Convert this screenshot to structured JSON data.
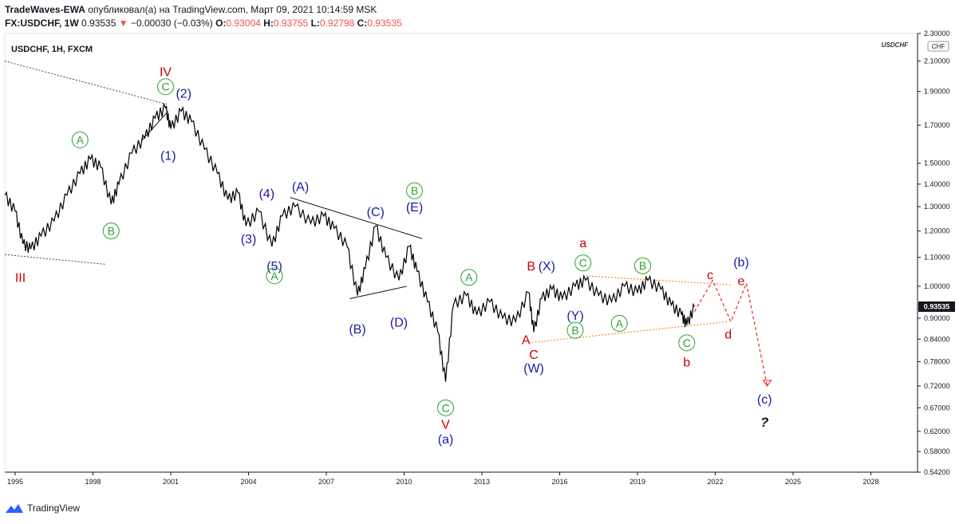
{
  "header": {
    "author": "TradeWaves-EWA",
    "published_text": "опубликовал(а) на TradingView.com, Март 09, 2021 10:14:59 MSK",
    "symbol_line": "FX:USDCHF, 1W",
    "last": "0.93535",
    "arrow": "▼",
    "change": "−0.00030 (−0.03%)",
    "o_label": "O:",
    "o_val": "0.93004",
    "h_label": "H:",
    "h_val": "0.93755",
    "l_label": "L:",
    "l_val": "0.92798",
    "c_label": "C:",
    "c_val": "0.93535"
  },
  "chart_title": "USDCHF, 1H, FXCM",
  "watermark": "USDCHF",
  "currency_badge": "CHF",
  "price_badge": "0.93535",
  "footer_brand": "TradingView",
  "colors": {
    "wave_blue": "#1a1aa6",
    "wave_red": "#cc0000",
    "wave_green": "#2ca02c",
    "orange": "#f57c00",
    "price": "#000000"
  },
  "chart_data": {
    "type": "line",
    "scale": "log",
    "ylim": [
      0.542,
      2.3
    ],
    "xlim": [
      1994.6,
      2029.8
    ],
    "y_ticks": [
      "2.30000",
      "2.10000",
      "1.90000",
      "1.70000",
      "1.50000",
      "1.40000",
      "1.30000",
      "1.20000",
      "1.10000",
      "1.00000",
      "0.90000",
      "0.84000",
      "0.78000",
      "0.72000",
      "0.67000",
      "0.62000",
      "0.58000",
      "0.54200"
    ],
    "x_ticks": [
      "1995",
      "1998",
      "2001",
      "2004",
      "2007",
      "2010",
      "2013",
      "2016",
      "2019",
      "2022",
      "2025",
      "2028"
    ],
    "series": [
      {
        "points": [
          [
            1994.6,
            1.35
          ],
          [
            1995.0,
            1.28
          ],
          [
            1995.3,
            1.15
          ],
          [
            1995.6,
            1.13
          ],
          [
            1996.0,
            1.18
          ],
          [
            1996.5,
            1.24
          ],
          [
            1997.0,
            1.35
          ],
          [
            1997.5,
            1.45
          ],
          [
            1997.9,
            1.52
          ],
          [
            1998.3,
            1.48
          ],
          [
            1998.7,
            1.31
          ],
          [
            1999.0,
            1.4
          ],
          [
            1999.5,
            1.55
          ],
          [
            2000.0,
            1.63
          ],
          [
            2000.4,
            1.74
          ],
          [
            2000.8,
            1.8
          ],
          [
            2001.0,
            1.68
          ],
          [
            2001.4,
            1.78
          ],
          [
            2001.8,
            1.72
          ],
          [
            2002.3,
            1.57
          ],
          [
            2002.8,
            1.45
          ],
          [
            2003.2,
            1.33
          ],
          [
            2003.6,
            1.36
          ],
          [
            2003.9,
            1.22
          ],
          [
            2004.4,
            1.28
          ],
          [
            2004.9,
            1.14
          ],
          [
            2005.3,
            1.26
          ],
          [
            2005.8,
            1.3
          ],
          [
            2006.4,
            1.23
          ],
          [
            2006.9,
            1.26
          ],
          [
            2007.3,
            1.21
          ],
          [
            2007.8,
            1.14
          ],
          [
            2008.2,
            0.97
          ],
          [
            2008.5,
            1.06
          ],
          [
            2008.9,
            1.22
          ],
          [
            2009.3,
            1.1
          ],
          [
            2009.8,
            1.02
          ],
          [
            2010.2,
            1.14
          ],
          [
            2010.5,
            1.05
          ],
          [
            2010.9,
            0.95
          ],
          [
            2011.3,
            0.86
          ],
          [
            2011.6,
            0.73
          ],
          [
            2011.9,
            0.94
          ],
          [
            2012.4,
            0.97
          ],
          [
            2012.8,
            0.91
          ],
          [
            2013.3,
            0.95
          ],
          [
            2013.8,
            0.9
          ],
          [
            2014.3,
            0.89
          ],
          [
            2014.8,
            0.98
          ],
          [
            2015.0,
            0.86
          ],
          [
            2015.3,
            0.96
          ],
          [
            2015.7,
            0.99
          ],
          [
            2016.1,
            0.96
          ],
          [
            2016.6,
            1.0
          ],
          [
            2017.0,
            1.02
          ],
          [
            2017.5,
            0.97
          ],
          [
            2018.0,
            0.95
          ],
          [
            2018.5,
            1.0
          ],
          [
            2019.0,
            0.98
          ],
          [
            2019.4,
            1.02
          ],
          [
            2019.9,
            0.99
          ],
          [
            2020.3,
            0.94
          ],
          [
            2020.7,
            0.91
          ],
          [
            2020.9,
            0.88
          ],
          [
            2021.2,
            0.935
          ]
        ]
      }
    ],
    "projection": {
      "points": [
        [
          2021.2,
          0.92
        ],
        [
          2021.9,
          1.02
        ],
        [
          2022.6,
          0.89
        ],
        [
          2023.2,
          1.01
        ],
        [
          2024.0,
          0.72
        ]
      ]
    },
    "trendlines": [
      {
        "style": "dotted",
        "color": "#444444",
        "points": [
          [
            1994.6,
            2.1
          ],
          [
            2000.9,
            1.82
          ]
        ]
      },
      {
        "style": "dotted",
        "color": "#444444",
        "points": [
          [
            1994.6,
            1.11
          ],
          [
            1998.5,
            1.075
          ]
        ]
      },
      {
        "style": "solid",
        "color": "#111111",
        "points": [
          [
            2005.6,
            1.34
          ],
          [
            2010.7,
            1.17
          ]
        ]
      },
      {
        "style": "solid",
        "color": "#111111",
        "points": [
          [
            2007.9,
            0.96
          ],
          [
            2010.1,
            1.0
          ]
        ]
      },
      {
        "style": "solid",
        "color": "#111111",
        "points": [
          [
            1999.9,
            1.62
          ],
          [
            2000.9,
            1.78
          ]
        ]
      },
      {
        "style": "dotted",
        "color": "#f57c00",
        "points": [
          [
            2017.0,
            1.035
          ],
          [
            2022.6,
            1.005
          ]
        ]
      },
      {
        "style": "dotted",
        "color": "#f57c00",
        "points": [
          [
            2014.8,
            0.83
          ],
          [
            2022.5,
            0.89
          ]
        ]
      }
    ],
    "annotations": [
      {
        "text": "IV",
        "color": "red",
        "circle": false,
        "x": 2000.8,
        "y": 2.03
      },
      {
        "text": "C",
        "color": "green",
        "circle": true,
        "x": 2000.8,
        "y": 1.93
      },
      {
        "text": "(2)",
        "color": "blue",
        "circle": false,
        "x": 2001.5,
        "y": 1.89
      },
      {
        "text": "A",
        "color": "green",
        "circle": true,
        "x": 1997.5,
        "y": 1.62
      },
      {
        "text": "(1)",
        "color": "blue",
        "circle": false,
        "x": 2000.9,
        "y": 1.54
      },
      {
        "text": "B",
        "color": "green",
        "circle": true,
        "x": 1998.7,
        "y": 1.2
      },
      {
        "text": "III",
        "color": "red",
        "circle": false,
        "x": 1995.2,
        "y": 1.03
      },
      {
        "text": "(4)",
        "color": "blue",
        "circle": false,
        "x": 2004.7,
        "y": 1.36
      },
      {
        "text": "(A)",
        "color": "blue",
        "circle": false,
        "x": 2006.0,
        "y": 1.39
      },
      {
        "text": "(3)",
        "color": "blue",
        "circle": false,
        "x": 2004.0,
        "y": 1.17
      },
      {
        "text": "(5)",
        "color": "blue",
        "circle": false,
        "x": 2005.0,
        "y": 1.07
      },
      {
        "text": "A",
        "color": "green",
        "circle": true,
        "x": 2005.0,
        "y": 1.035
      },
      {
        "text": "(C)",
        "color": "blue",
        "circle": false,
        "x": 2008.9,
        "y": 1.28
      },
      {
        "text": "B",
        "color": "green",
        "circle": true,
        "x": 2010.4,
        "y": 1.37
      },
      {
        "text": "(E)",
        "color": "blue",
        "circle": false,
        "x": 2010.4,
        "y": 1.3
      },
      {
        "text": "(B)",
        "color": "blue",
        "circle": false,
        "x": 2008.2,
        "y": 0.87
      },
      {
        "text": "(D)",
        "color": "blue",
        "circle": false,
        "x": 2009.8,
        "y": 0.89
      },
      {
        "text": "C",
        "color": "green",
        "circle": true,
        "x": 2011.6,
        "y": 0.67
      },
      {
        "text": "V",
        "color": "red",
        "circle": false,
        "x": 2011.6,
        "y": 0.635
      },
      {
        "text": "(a)",
        "color": "blue",
        "circle": false,
        "x": 2011.6,
        "y": 0.605
      },
      {
        "text": "A",
        "color": "green",
        "circle": true,
        "x": 2012.5,
        "y": 1.03
      },
      {
        "text": "A",
        "color": "red",
        "circle": false,
        "x": 2014.7,
        "y": 0.84
      },
      {
        "text": "B",
        "color": "red",
        "circle": false,
        "x": 2014.9,
        "y": 1.07
      },
      {
        "text": "(X)",
        "color": "blue",
        "circle": false,
        "x": 2015.5,
        "y": 1.07
      },
      {
        "text": "a",
        "color": "red",
        "circle": false,
        "x": 2016.9,
        "y": 1.155
      },
      {
        "text": "C",
        "color": "green",
        "circle": true,
        "x": 2016.9,
        "y": 1.08
      },
      {
        "text": "(Y)",
        "color": "blue",
        "circle": false,
        "x": 2016.6,
        "y": 0.91
      },
      {
        "text": "B",
        "color": "green",
        "circle": true,
        "x": 2016.6,
        "y": 0.865
      },
      {
        "text": "A",
        "color": "green",
        "circle": true,
        "x": 2018.3,
        "y": 0.885
      },
      {
        "text": "B",
        "color": "green",
        "circle": true,
        "x": 2019.2,
        "y": 1.07
      },
      {
        "text": "C",
        "color": "red",
        "circle": false,
        "x": 2015.0,
        "y": 0.8
      },
      {
        "text": "(W)",
        "color": "blue",
        "circle": false,
        "x": 2015.0,
        "y": 0.765
      },
      {
        "text": "C",
        "color": "green",
        "circle": true,
        "x": 2020.9,
        "y": 0.83
      },
      {
        "text": "b",
        "color": "red",
        "circle": false,
        "x": 2020.9,
        "y": 0.78
      },
      {
        "text": "c",
        "color": "red",
        "circle": false,
        "x": 2021.8,
        "y": 1.04
      },
      {
        "text": "(b)",
        "color": "blue",
        "circle": false,
        "x": 2023.0,
        "y": 1.085
      },
      {
        "text": "e",
        "color": "red",
        "circle": false,
        "x": 2023.0,
        "y": 1.02
      },
      {
        "text": "d",
        "color": "red",
        "circle": false,
        "x": 2022.5,
        "y": 0.855
      },
      {
        "text": "(c)",
        "color": "blue",
        "circle": false,
        "x": 2023.9,
        "y": 0.69
      },
      {
        "text": "?",
        "color": "black",
        "circle": false,
        "x": 2023.9,
        "y": 0.64
      }
    ]
  }
}
